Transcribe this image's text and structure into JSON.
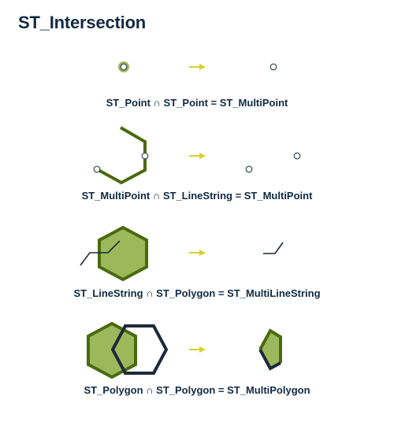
{
  "title": "ST_Intersection",
  "rows": [
    {
      "caption": "ST_Point ∩ ST_Point = ST_MultiPoint"
    },
    {
      "caption": "ST_MultiPoint ∩ ST_LineString = ST_MultiPoint"
    },
    {
      "caption": "ST_LineString ∩ ST_Polygon = ST_MultiLineString"
    },
    {
      "caption": "ST_Polygon ∩ ST_Polygon = ST_MultiPolygon"
    }
  ],
  "colors": {
    "title_text": "#102a43",
    "geometry_fill": "#9bb95a",
    "geometry_stroke": "#4a6a0e",
    "second_polygon_stroke": "#1c2a3a",
    "point_stroke": "#2c3e50",
    "arrow": "#d9d02a"
  }
}
